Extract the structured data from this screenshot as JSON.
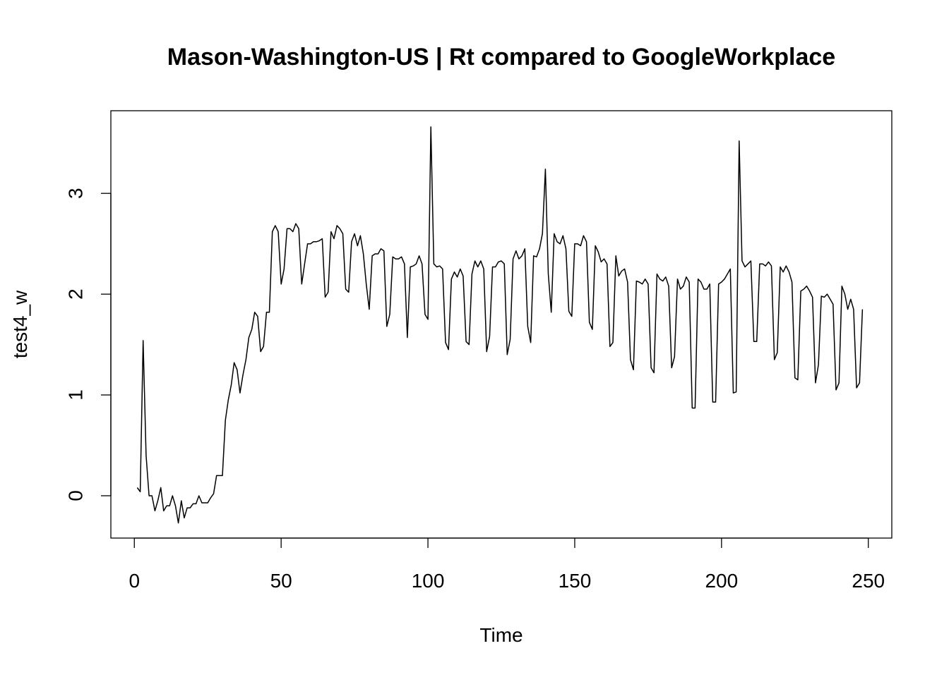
{
  "chart_data": {
    "type": "line",
    "title": "Mason-Washington-US | Rt compared to GoogleWorkplace",
    "xlabel": "Time",
    "ylabel": "test4_w",
    "xlim": [
      -8,
      258
    ],
    "ylim": [
      -0.42,
      3.82
    ],
    "x_ticks": [
      0,
      50,
      100,
      150,
      200,
      250
    ],
    "y_ticks": [
      0,
      1,
      2,
      3
    ],
    "grid": false,
    "legend": "none",
    "line_color": "#000000",
    "series": [
      {
        "x": [
          1,
          2,
          3,
          4,
          5,
          6,
          7,
          8,
          9,
          10,
          11,
          12,
          13,
          14,
          15,
          16,
          17,
          18,
          19,
          20,
          21,
          22,
          23,
          24,
          25,
          26,
          27,
          28,
          29,
          30,
          31,
          32,
          33,
          34,
          35,
          36,
          37,
          38,
          39,
          40,
          41,
          42,
          43,
          44,
          45,
          46,
          47,
          48,
          49,
          50,
          51,
          52,
          53,
          54,
          55,
          56,
          57,
          58,
          59,
          60,
          61,
          62,
          63,
          64,
          65,
          66,
          67,
          68,
          69,
          70,
          71,
          72,
          73,
          74,
          75,
          76,
          77,
          78,
          79,
          80,
          81,
          82,
          83,
          84,
          85,
          86,
          87,
          88,
          89,
          90,
          91,
          92,
          93,
          94,
          95,
          96,
          97,
          98,
          99,
          100,
          101,
          102,
          103,
          104,
          105,
          106,
          107,
          108,
          109,
          110,
          111,
          112,
          113,
          114,
          115,
          116,
          117,
          118,
          119,
          120,
          121,
          122,
          123,
          124,
          125,
          126,
          127,
          128,
          129,
          130,
          131,
          132,
          133,
          134,
          135,
          136,
          137,
          138,
          139,
          140,
          141,
          142,
          143,
          144,
          145,
          146,
          147,
          148,
          149,
          150,
          151,
          152,
          153,
          154,
          155,
          156,
          157,
          158,
          159,
          160,
          161,
          162,
          163,
          164,
          165,
          166,
          167,
          168,
          169,
          170,
          171,
          172,
          173,
          174,
          175,
          176,
          177,
          178,
          179,
          180,
          181,
          182,
          183,
          184,
          185,
          186,
          187,
          188,
          189,
          190,
          191,
          192,
          193,
          194,
          195,
          196,
          197,
          198,
          199,
          200,
          201,
          202,
          203,
          204,
          205,
          206,
          207,
          208,
          209,
          210,
          211,
          212,
          213,
          214,
          215,
          216,
          217,
          218,
          219,
          220,
          221,
          222,
          223,
          224,
          225,
          226,
          227,
          228,
          229,
          230,
          231,
          232,
          233,
          234,
          235,
          236,
          237,
          238,
          239,
          240,
          241,
          242,
          243,
          244,
          245,
          246,
          247,
          248
        ],
        "values": [
          0.08,
          0.04,
          1.54,
          0.4,
          0.0,
          0.0,
          -0.15,
          -0.05,
          0.08,
          -0.15,
          -0.1,
          -0.1,
          0.0,
          -0.1,
          -0.27,
          -0.05,
          -0.22,
          -0.12,
          -0.12,
          -0.08,
          -0.08,
          0.0,
          -0.07,
          -0.07,
          -0.07,
          -0.02,
          0.02,
          0.2,
          0.2,
          0.2,
          0.75,
          0.95,
          1.1,
          1.32,
          1.25,
          1.02,
          1.2,
          1.35,
          1.57,
          1.65,
          1.82,
          1.78,
          1.43,
          1.48,
          1.82,
          1.82,
          2.62,
          2.68,
          2.62,
          2.1,
          2.25,
          2.65,
          2.65,
          2.62,
          2.7,
          2.65,
          2.1,
          2.3,
          2.5,
          2.5,
          2.52,
          2.52,
          2.53,
          2.55,
          1.97,
          2.02,
          2.62,
          2.55,
          2.68,
          2.65,
          2.6,
          2.05,
          2.02,
          2.52,
          2.6,
          2.48,
          2.58,
          2.4,
          2.1,
          1.85,
          2.38,
          2.4,
          2.4,
          2.45,
          2.43,
          1.68,
          1.8,
          2.37,
          2.35,
          2.35,
          2.37,
          2.3,
          1.57,
          2.27,
          2.28,
          2.3,
          2.38,
          2.3,
          1.8,
          1.75,
          3.66,
          2.3,
          2.27,
          2.28,
          2.25,
          1.52,
          1.45,
          2.15,
          2.22,
          2.17,
          2.25,
          2.18,
          1.53,
          1.5,
          2.2,
          2.33,
          2.27,
          2.33,
          2.25,
          1.43,
          1.58,
          2.27,
          2.27,
          2.32,
          2.33,
          2.3,
          1.4,
          1.55,
          2.35,
          2.43,
          2.35,
          2.38,
          2.45,
          1.68,
          1.52,
          2.38,
          2.37,
          2.45,
          2.6,
          3.24,
          2.2,
          1.82,
          2.6,
          2.52,
          2.5,
          2.58,
          2.45,
          1.83,
          1.78,
          2.5,
          2.5,
          2.48,
          2.58,
          2.52,
          1.72,
          1.65,
          2.48,
          2.42,
          2.32,
          2.35,
          2.3,
          1.48,
          1.52,
          2.38,
          2.18,
          2.23,
          2.25,
          2.12,
          1.35,
          1.25,
          2.13,
          2.12,
          2.1,
          2.15,
          2.1,
          1.27,
          1.22,
          2.2,
          2.15,
          2.13,
          2.17,
          2.08,
          1.27,
          1.38,
          2.15,
          2.05,
          2.08,
          2.17,
          2.12,
          0.87,
          0.87,
          2.15,
          2.12,
          2.05,
          2.05,
          2.1,
          0.93,
          0.93,
          2.1,
          2.12,
          2.15,
          2.2,
          2.25,
          1.02,
          1.03,
          3.52,
          2.33,
          2.27,
          2.3,
          2.33,
          1.53,
          1.53,
          2.3,
          2.3,
          2.28,
          2.32,
          2.28,
          1.35,
          1.42,
          2.27,
          2.22,
          2.28,
          2.22,
          2.12,
          1.17,
          1.15,
          2.03,
          2.05,
          2.08,
          2.03,
          1.97,
          1.12,
          1.3,
          1.98,
          1.97,
          2.0,
          1.95,
          1.9,
          1.05,
          1.12,
          2.08,
          2.0,
          1.85,
          1.95,
          1.85,
          1.07,
          1.12,
          1.85
        ]
      }
    ]
  }
}
